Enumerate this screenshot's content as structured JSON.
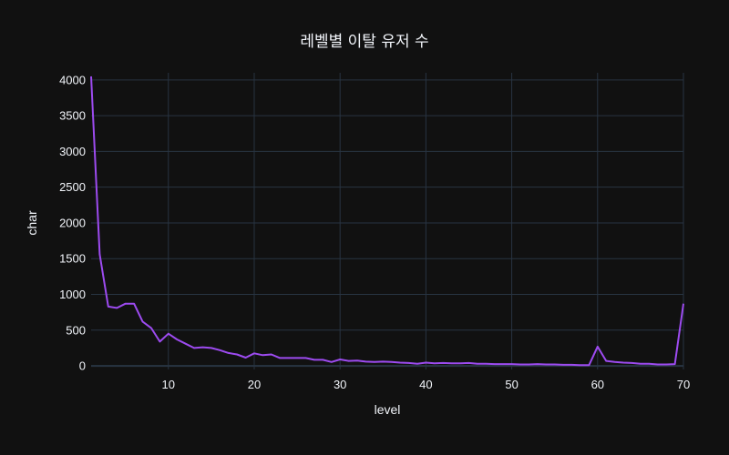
{
  "chart_data": {
    "type": "line",
    "title": "레벨별 이탈 유저 수",
    "xlabel": "level",
    "ylabel": "char",
    "xlim": [
      1,
      70
    ],
    "ylim": [
      -50,
      4100
    ],
    "x_ticks": [
      10,
      20,
      30,
      40,
      50,
      60,
      70
    ],
    "y_ticks": [
      0,
      500,
      1000,
      1500,
      2000,
      2500,
      3000,
      3500,
      4000
    ],
    "grid": true,
    "legend": "none",
    "colors": {
      "background": "#111111",
      "grid": "#283442",
      "text": "#f2f5fa",
      "line": "#9d4bf0"
    },
    "series": [
      {
        "x": [
          1,
          2,
          3,
          4,
          5,
          6,
          7,
          8,
          9,
          10,
          11,
          12,
          13,
          14,
          15,
          16,
          17,
          18,
          19,
          20,
          21,
          22,
          23,
          24,
          25,
          26,
          27,
          28,
          29,
          30,
          31,
          32,
          33,
          34,
          35,
          36,
          37,
          38,
          39,
          40,
          41,
          42,
          43,
          44,
          45,
          46,
          47,
          48,
          49,
          50,
          51,
          52,
          53,
          54,
          55,
          56,
          57,
          58,
          59,
          60,
          61,
          62,
          63,
          64,
          65,
          66,
          67,
          68,
          69,
          70
        ],
        "values": [
          4050,
          1560,
          830,
          810,
          870,
          870,
          620,
          530,
          340,
          450,
          370,
          310,
          250,
          260,
          250,
          220,
          180,
          160,
          115,
          175,
          150,
          160,
          110,
          110,
          110,
          110,
          85,
          85,
          55,
          90,
          70,
          75,
          60,
          55,
          60,
          55,
          45,
          40,
          30,
          45,
          35,
          40,
          35,
          35,
          40,
          30,
          30,
          25,
          25,
          25,
          20,
          20,
          25,
          20,
          20,
          15,
          15,
          10,
          10,
          270,
          70,
          55,
          45,
          40,
          30,
          30,
          20,
          20,
          25,
          870
        ]
      }
    ]
  }
}
